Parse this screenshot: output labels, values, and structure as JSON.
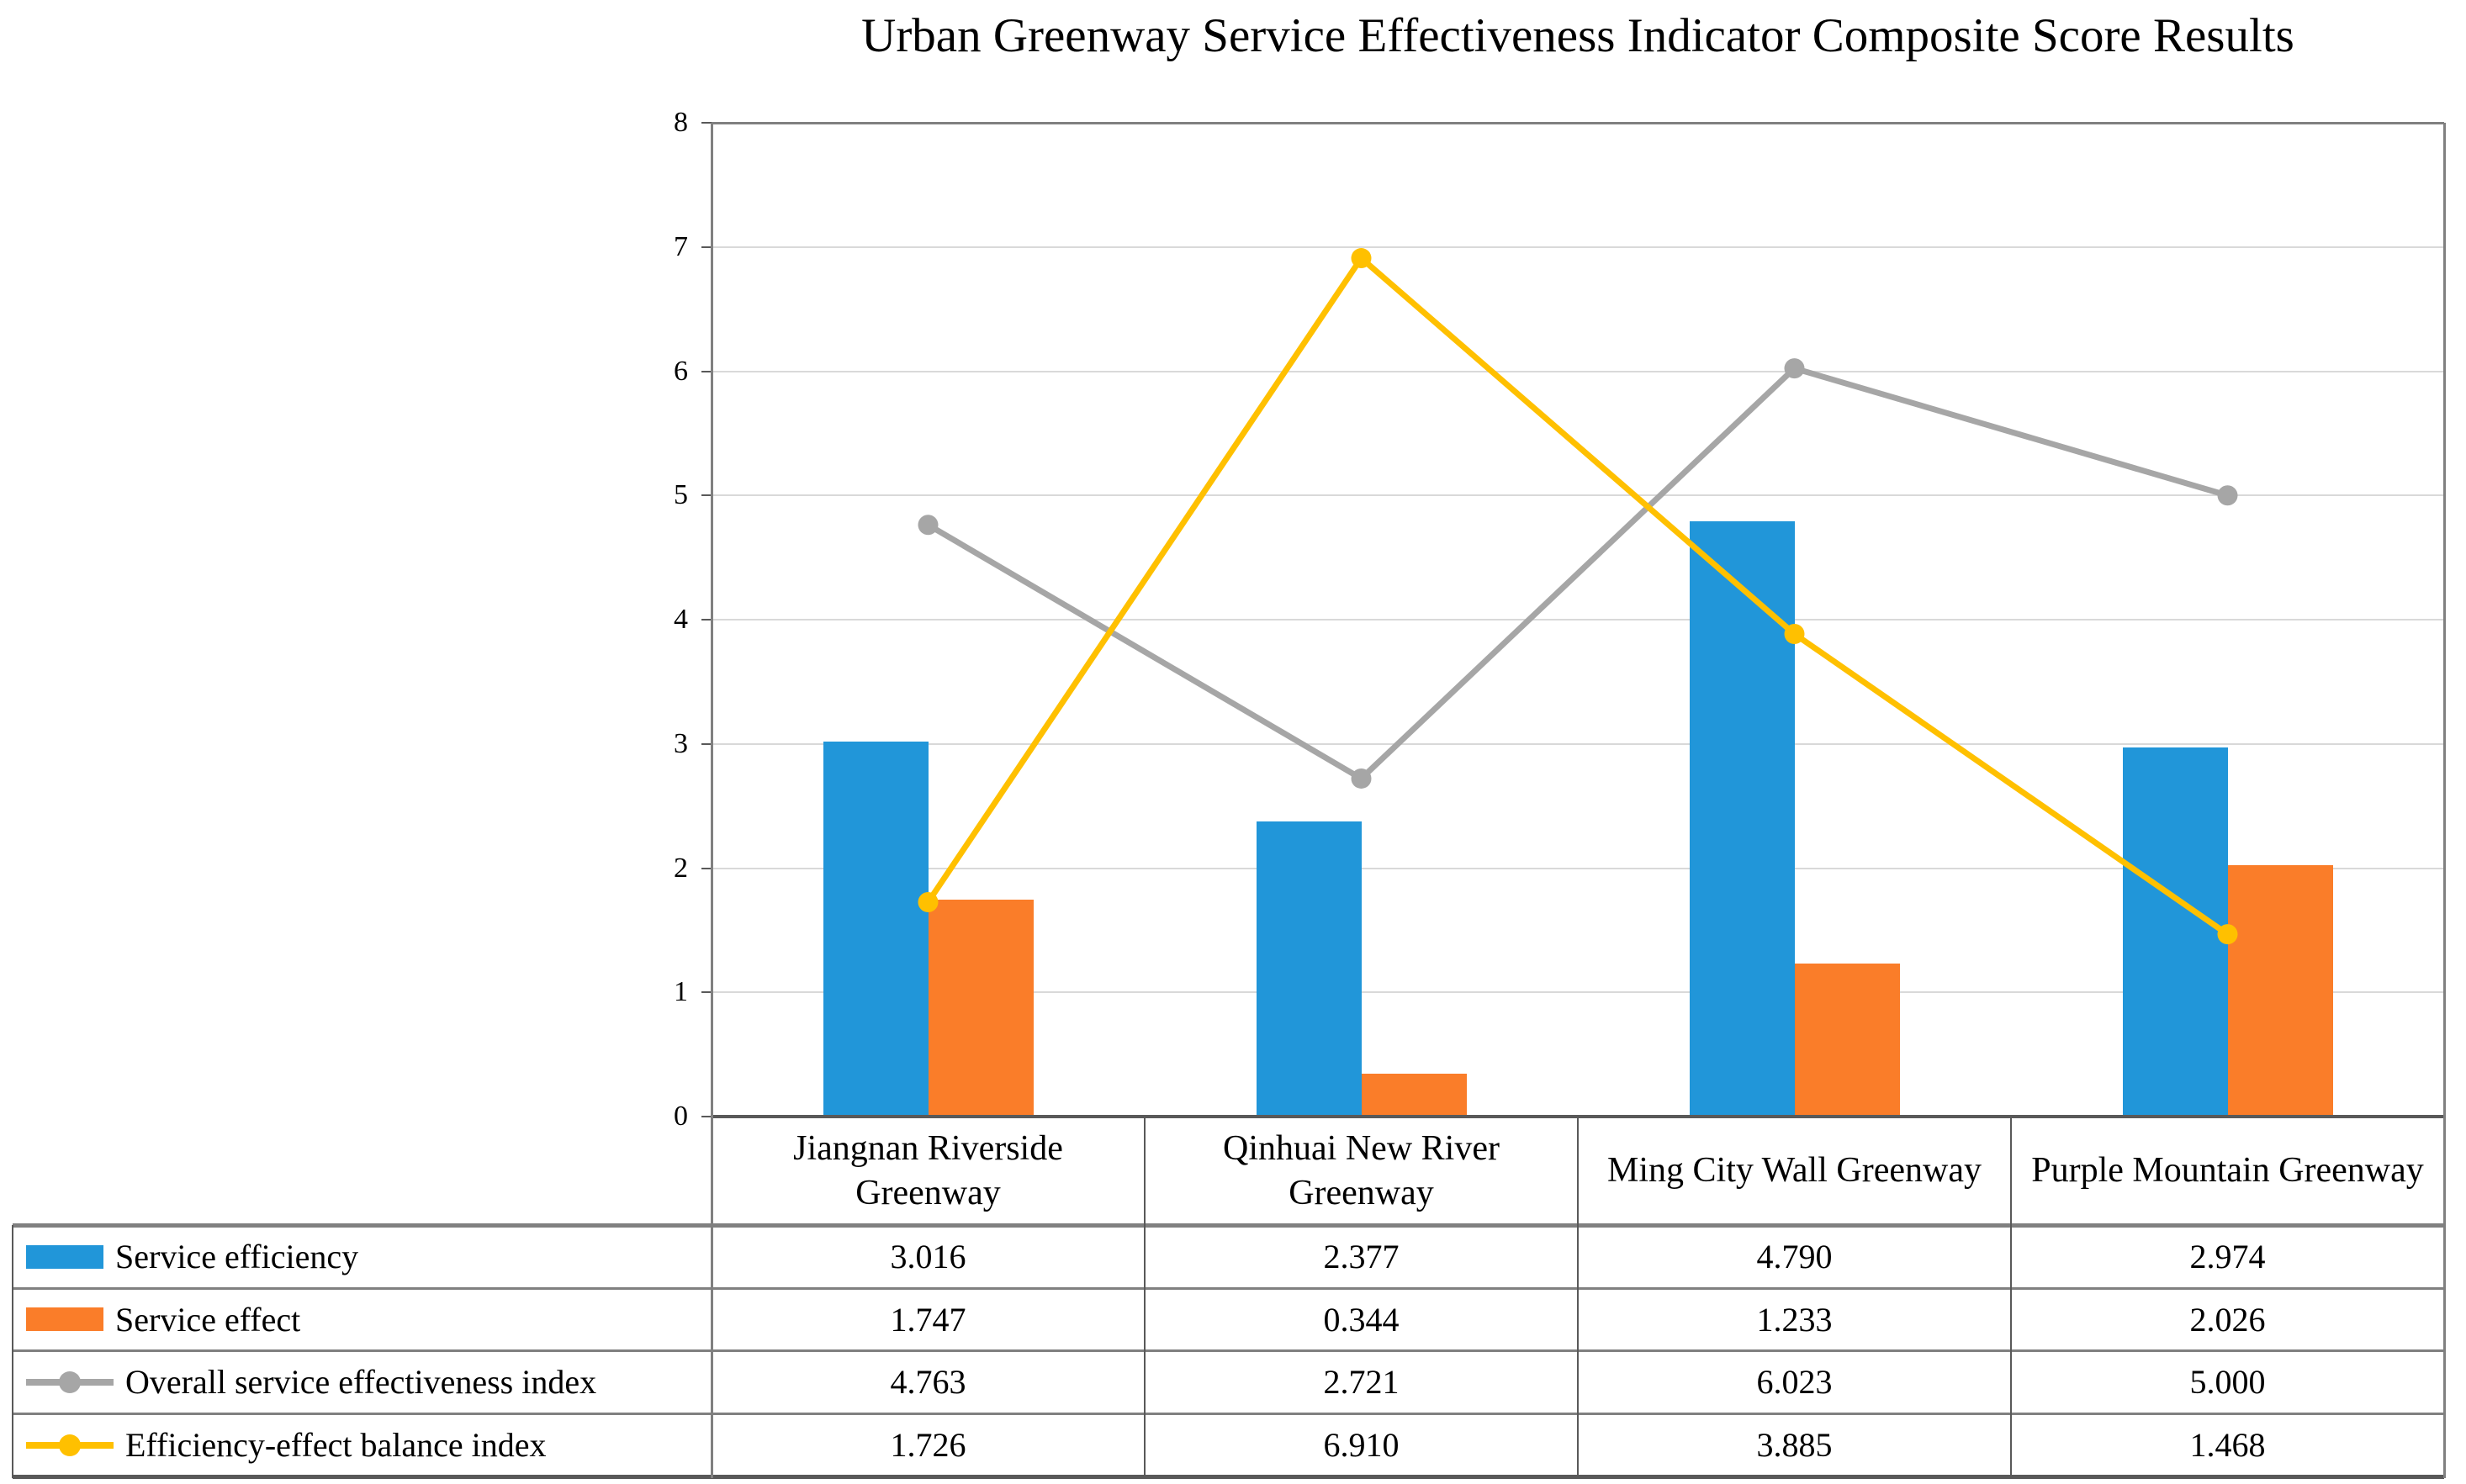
{
  "chart_data": {
    "type": "bar+line combo",
    "title": "Urban Greenway Service Effectiveness Indicator Composite Score Results",
    "categories": [
      "Jiangnan Riverside Greenway",
      "Qinhuai New River Greenway",
      "Ming City Wall Greenway",
      "Purple Mountain Greenway"
    ],
    "series": [
      {
        "name": "Service efficiency",
        "type": "bar",
        "color": "#2196D9",
        "values": [
          3.016,
          2.377,
          4.79,
          2.974
        ]
      },
      {
        "name": "Service effect",
        "type": "bar",
        "color": "#FA7D29",
        "values": [
          1.747,
          0.344,
          1.233,
          2.026
        ]
      },
      {
        "name": "Overall service effectiveness index",
        "type": "line",
        "color": "#A6A6A6",
        "values": [
          4.763,
          2.721,
          6.023,
          5.0
        ]
      },
      {
        "name": "Efficiency-effect balance index",
        "type": "line",
        "color": "#FFC000",
        "values": [
          1.726,
          6.91,
          3.885,
          1.468
        ]
      }
    ],
    "ylim": [
      0,
      8
    ],
    "ytick_step": 1,
    "yticks": [
      0,
      1,
      2,
      3,
      4,
      5,
      6,
      7,
      8
    ],
    "value_decimals": 3,
    "grid": true,
    "legend_position": "table left column",
    "table_values_as_displayed": [
      [
        "3.016",
        "2.377",
        "4.790",
        "2.974"
      ],
      [
        "1.747",
        "0.344",
        "1.233",
        "2.026"
      ],
      [
        "4.763",
        "2.721",
        "6.023",
        "5.000"
      ],
      [
        "1.726",
        "6.910",
        "3.885",
        "1.468"
      ]
    ]
  },
  "colors": {
    "gridline": "#D9D9D9",
    "plot_border": "#808080",
    "axis_line": "#595959",
    "table_border": "#808080",
    "table_border_dark": "#595959",
    "text": "#000000",
    "background": "#FFFFFF"
  }
}
